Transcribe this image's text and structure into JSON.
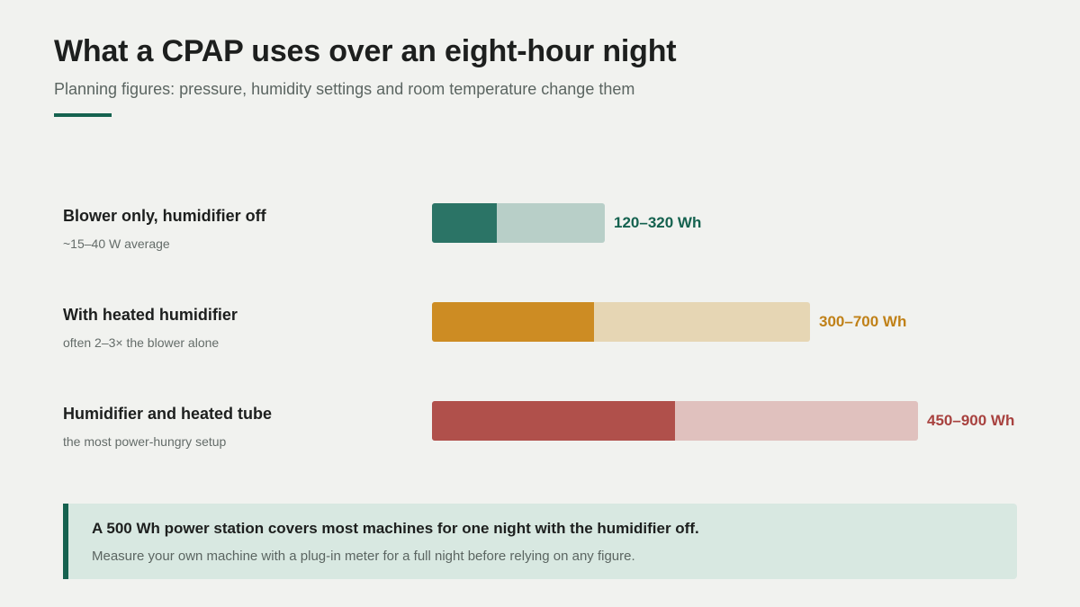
{
  "header": {
    "title": "What a CPAP uses over an eight-hour night",
    "subtitle": "Planning figures: pressure, humidity settings and room temperature change them"
  },
  "chart_data": {
    "type": "bar",
    "orientation": "horizontal",
    "unit": "Wh",
    "categories": [
      "Blower only, humidifier off",
      "With heated humidifier",
      "Humidifier and heated tube"
    ],
    "notes": [
      "~15–40 W average",
      "often 2–3× the blower alone",
      "the most power-hungry setup"
    ],
    "low": [
      120,
      300,
      450
    ],
    "high": [
      320,
      700,
      900
    ],
    "value_labels": [
      "120–320 Wh",
      "300–700 Wh",
      "450–900 Wh"
    ],
    "colors": {
      "fill": [
        "#2b7466",
        "#cd8c23",
        "#b0504b"
      ],
      "track": [
        "#b8cfc8",
        "#e6d6b4",
        "#e0c1be"
      ],
      "label": [
        "#15624f",
        "#c08118",
        "#a8423f"
      ]
    },
    "xlim": [
      0,
      1000
    ],
    "grid": false,
    "legend": "none"
  },
  "callout": {
    "title": "A 500 Wh power station covers most machines for one night with the humidifier off.",
    "body": "Measure your own machine with a plug-in meter for a full night before relying on any figure."
  },
  "colors": {
    "background": "#f1f2ef",
    "accent": "#15624f",
    "callout_background": "#d8e8e1"
  }
}
